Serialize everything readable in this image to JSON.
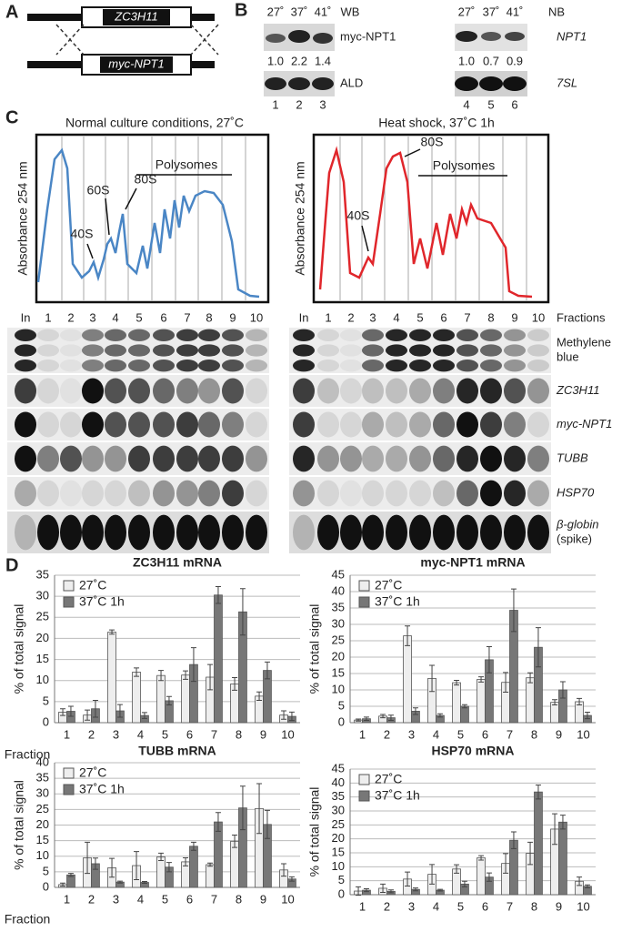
{
  "panel_labels": [
    "A",
    "B",
    "C",
    "D"
  ],
  "panel_a": {
    "gene_top": "ZC3H11",
    "gene_bottom": "myc-NPT1"
  },
  "panel_b": {
    "western": {
      "temperatures": [
        "27˚",
        "37˚",
        "41˚"
      ],
      "method": "WB",
      "probe": "myc-NPT1",
      "quantification": [
        "1.0",
        "2.2",
        "1.4"
      ],
      "loading": "ALD",
      "lanes": [
        "1",
        "2",
        "3"
      ]
    },
    "northern": {
      "temperatures": [
        "27˚",
        "37˚",
        "41˚"
      ],
      "method": "NB",
      "probe": "NPT1",
      "quantification": [
        "1.0",
        "0.7",
        "0.9"
      ],
      "loading": "7SL",
      "lanes": [
        "4",
        "5",
        "6"
      ]
    }
  },
  "panel_c": {
    "profiles": [
      {
        "title": "Normal culture conditions, 27˚C",
        "ylabel": "Absorbance 254 nm",
        "peaks": [
          "40S",
          "60S",
          "80S"
        ],
        "polysomes": "Polysomes"
      },
      {
        "title": "Heat shock, 37˚C 1h",
        "ylabel": "Absorbance 254 nm",
        "peaks": [
          "80S",
          "40S"
        ],
        "polysomes": "Polysomes"
      }
    ],
    "fractions": [
      "In",
      "1",
      "2",
      "3",
      "4",
      "5",
      "6",
      "7",
      "8",
      "9",
      "10"
    ],
    "fractions_label": "Fractions",
    "rows": [
      [
        "Methylene",
        "blue"
      ],
      [
        "ZC3H11"
      ],
      [
        "myc-NPT1"
      ],
      [
        "TUBB"
      ],
      [
        "HSP70"
      ],
      [
        "β-globin",
        "(spike)"
      ]
    ]
  },
  "chart_data": [
    {
      "type": "bar",
      "title": "ZC3H11 mRNA",
      "ylabel": "% of total signal",
      "xlabel": "Fraction",
      "categories": [
        "1",
        "2",
        "3",
        "4",
        "5",
        "6",
        "7",
        "8",
        "9",
        "10"
      ],
      "series": [
        {
          "name": "27˚C",
          "color": "#eeeeee",
          "values": [
            2.5,
            1.8,
            21.5,
            12,
            11.2,
            11.3,
            10.8,
            9.2,
            6.3,
            1.8
          ],
          "errors": [
            0.8,
            1.2,
            0.5,
            1,
            1.2,
            1,
            3,
            1.5,
            1,
            1
          ]
        },
        {
          "name": "37˚C 1h",
          "color": "#777777",
          "values": [
            2.7,
            3.3,
            2.8,
            1.7,
            5.2,
            13.8,
            30.3,
            26.3,
            12.4,
            1.5
          ],
          "errors": [
            1.2,
            2,
            1.5,
            0.7,
            1,
            4,
            2,
            5.5,
            2,
            1
          ]
        }
      ],
      "ylim": [
        0,
        35
      ],
      "yticks": [
        0,
        5,
        10,
        15,
        20,
        25,
        30,
        35
      ],
      "grid": true,
      "legend": "upper left"
    },
    {
      "type": "bar",
      "title": "myc-NPT1 mRNA",
      "ylabel": "% of total signal",
      "categories": [
        "1",
        "2",
        "3",
        "4",
        "5",
        "6",
        "7",
        "8",
        "9",
        "10"
      ],
      "series": [
        {
          "name": "27˚C",
          "color": "#eeeeee",
          "values": [
            0.8,
            2,
            26.5,
            13.5,
            12.2,
            13.2,
            12.3,
            13.7,
            6.2,
            6.4
          ],
          "errors": [
            0.3,
            0.5,
            3,
            4,
            0.7,
            0.8,
            3,
            1.5,
            0.8,
            1
          ]
        },
        {
          "name": "37˚C 1h",
          "color": "#777777",
          "values": [
            1.2,
            1.5,
            3.5,
            2.2,
            5,
            19.2,
            34.3,
            23,
            10,
            2.2
          ],
          "errors": [
            0.5,
            0.8,
            1,
            0.5,
            0.5,
            4,
            6.5,
            6,
            2.5,
            1
          ]
        }
      ],
      "ylim": [
        0,
        45
      ],
      "yticks": [
        0,
        5,
        10,
        15,
        20,
        25,
        30,
        35,
        40,
        45
      ],
      "grid": true,
      "legend": "upper left"
    },
    {
      "type": "bar",
      "title": "TUBB mRNA",
      "ylabel": "% of total signal",
      "xlabel": "Fraction",
      "categories": [
        "1",
        "2",
        "3",
        "4",
        "5",
        "6",
        "7",
        "8",
        "9",
        "10"
      ],
      "series": [
        {
          "name": "27˚C",
          "color": "#eeeeee",
          "values": [
            0.9,
            9.5,
            6.3,
            7,
            9.8,
            8.2,
            7.3,
            14.8,
            25.3,
            5.6
          ],
          "errors": [
            0.5,
            5,
            3,
            4.5,
            1.2,
            1.3,
            0.5,
            2,
            8,
            2
          ]
        },
        {
          "name": "37˚C 1h",
          "color": "#777777",
          "values": [
            4,
            7.6,
            1.7,
            1.6,
            6.5,
            13.2,
            21,
            25.5,
            20.2,
            2.7
          ],
          "errors": [
            0.5,
            1.8,
            0.3,
            0.3,
            1.5,
            1.3,
            3,
            7,
            4.5,
            0.7
          ]
        }
      ],
      "ylim": [
        0,
        40
      ],
      "yticks": [
        0,
        5,
        10,
        15,
        20,
        25,
        30,
        35,
        40
      ],
      "grid": true,
      "legend": "upper left"
    },
    {
      "type": "bar",
      "title": "HSP70 mRNA",
      "ylabel": "% of total signal",
      "categories": [
        "1",
        "2",
        "3",
        "4",
        "5",
        "6",
        "7",
        "8",
        "9",
        "10"
      ],
      "series": [
        {
          "name": "27˚C",
          "color": "#eeeeee",
          "values": [
            1.3,
            2.3,
            5.6,
            7.3,
            9.2,
            13.2,
            11.2,
            14.8,
            23.5,
            4.8
          ],
          "errors": [
            1.5,
            1.5,
            2.5,
            3.5,
            1.5,
            0.8,
            3.5,
            4,
            5.5,
            1.5
          ]
        },
        {
          "name": "37˚C 1h",
          "color": "#777777",
          "values": [
            1.6,
            1.2,
            1.9,
            1.6,
            3.8,
            6.3,
            19.5,
            36.8,
            26,
            3
          ],
          "errors": [
            0.5,
            0.5,
            0.5,
            0.3,
            1,
            1.5,
            3,
            2.5,
            2.5,
            0.5
          ]
        }
      ],
      "ylim": [
        0,
        45
      ],
      "yticks": [
        0,
        5,
        10,
        15,
        20,
        25,
        30,
        35,
        40,
        45
      ],
      "grid": true,
      "legend": "upper left"
    }
  ]
}
